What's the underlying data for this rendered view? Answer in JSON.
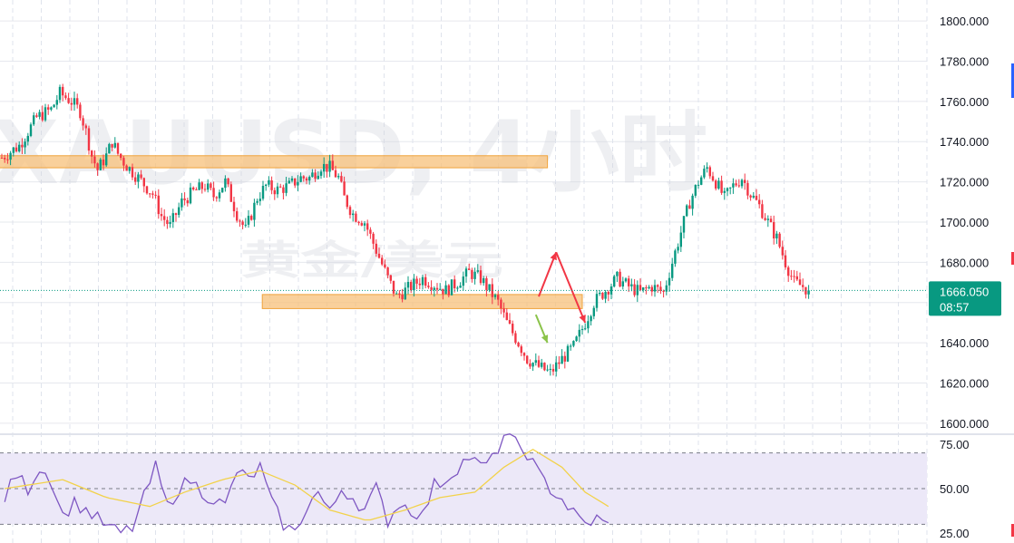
{
  "chart_data": [
    {
      "type": "candlestick",
      "watermark": {
        "symbol": "XAUUSD, 4小时",
        "subtitle": "黄金/美元"
      },
      "y_axis": {
        "ticks": [
          "1800.000",
          "1780.000",
          "1760.000",
          "1740.000",
          "1720.000",
          "1700.000",
          "1680.000",
          "1660.000",
          "1640.000",
          "1620.000",
          "1600.000"
        ],
        "range": [
          1595,
          1805
        ]
      },
      "last_price": {
        "value": "1666.050",
        "countdown": "08:57",
        "color": "#089981"
      },
      "colors": {
        "up": "#089981",
        "down": "#f23645",
        "zone": "#f7c07a"
      },
      "zones": [
        {
          "low": 1727,
          "high": 1733,
          "from": 0,
          "to": 188
        },
        {
          "low": 1657,
          "high": 1664,
          "from": 91,
          "to": 200
        }
      ],
      "arrows": [
        {
          "from": [
            185,
            1663
          ],
          "to": [
            191,
            1685
          ],
          "color": "#f23645"
        },
        {
          "from": [
            191,
            1685
          ],
          "to": [
            201,
            1650
          ],
          "color": "#f23645"
        },
        {
          "from": [
            184,
            1654
          ],
          "to": [
            188,
            1640
          ],
          "color": "#8bc34a"
        }
      ],
      "close_path": [
        [
          0,
          1732
        ],
        [
          6,
          1738
        ],
        [
          12,
          1752
        ],
        [
          17,
          1756
        ],
        [
          20,
          1764
        ],
        [
          24,
          1760
        ],
        [
          27,
          1755
        ],
        [
          29,
          1745
        ],
        [
          31,
          1733
        ],
        [
          33,
          1726
        ],
        [
          36,
          1733
        ],
        [
          38,
          1740
        ],
        [
          40,
          1734
        ],
        [
          43,
          1728
        ],
        [
          47,
          1722
        ],
        [
          52,
          1714
        ],
        [
          55,
          1703
        ],
        [
          58,
          1698
        ],
        [
          62,
          1710
        ],
        [
          66,
          1715
        ],
        [
          70,
          1718
        ],
        [
          73,
          1713
        ],
        [
          77,
          1720
        ],
        [
          81,
          1704
        ],
        [
          84,
          1696
        ],
        [
          88,
          1712
        ],
        [
          91,
          1718
        ],
        [
          95,
          1716
        ],
        [
          99,
          1718
        ],
        [
          103,
          1722
        ],
        [
          106,
          1722
        ],
        [
          110,
          1728
        ],
        [
          113,
          1727
        ],
        [
          116,
          1722
        ],
        [
          118,
          1712
        ],
        [
          121,
          1704
        ],
        [
          125,
          1700
        ],
        [
          129,
          1686
        ],
        [
          133,
          1672
        ],
        [
          136,
          1663
        ],
        [
          141,
          1668
        ],
        [
          145,
          1672
        ],
        [
          149,
          1669
        ],
        [
          153,
          1666
        ],
        [
          157,
          1670
        ],
        [
          161,
          1675
        ],
        [
          165,
          1672
        ],
        [
          168,
          1666
        ],
        [
          171,
          1660
        ],
        [
          174,
          1650
        ],
        [
          178,
          1640
        ],
        [
          181,
          1632
        ],
        [
          185,
          1628
        ],
        [
          189,
          1625
        ],
        [
          193,
          1632
        ],
        [
          197,
          1638
        ],
        [
          201,
          1650
        ],
        [
          204,
          1660
        ],
        [
          208,
          1666
        ],
        [
          212,
          1672
        ],
        [
          216,
          1668
        ],
        [
          220,
          1665
        ],
        [
          224,
          1668
        ],
        [
          228,
          1665
        ],
        [
          231,
          1680
        ],
        [
          234,
          1695
        ],
        [
          237,
          1710
        ],
        [
          240,
          1720
        ],
        [
          243,
          1727
        ],
        [
          246,
          1720
        ],
        [
          249,
          1712
        ],
        [
          252,
          1718
        ],
        [
          255,
          1722
        ],
        [
          258,
          1714
        ],
        [
          261,
          1708
        ],
        [
          264,
          1700
        ],
        [
          267,
          1692
        ],
        [
          270,
          1680
        ],
        [
          273,
          1670
        ],
        [
          276,
          1668
        ],
        [
          278,
          1666.05
        ]
      ],
      "rsi": {
        "levels": [
          "75.00",
          "50.00",
          "25.00"
        ],
        "range": [
          20,
          80
        ],
        "band": [
          30,
          70
        ],
        "color": "#7e57c2",
        "ma_color": "#f2d24a",
        "band_color": "#ece8f8",
        "values": [
          [
            0,
            45
          ],
          [
            4,
            58
          ],
          [
            8,
            50
          ],
          [
            12,
            62
          ],
          [
            16,
            55
          ],
          [
            20,
            35
          ],
          [
            24,
            42
          ],
          [
            28,
            38
          ],
          [
            32,
            33
          ],
          [
            36,
            28
          ],
          [
            40,
            25
          ],
          [
            44,
            28
          ],
          [
            48,
            45
          ],
          [
            52,
            62
          ],
          [
            56,
            40
          ],
          [
            60,
            50
          ],
          [
            64,
            55
          ],
          [
            68,
            48
          ],
          [
            72,
            44
          ],
          [
            76,
            40
          ],
          [
            80,
            60
          ],
          [
            84,
            55
          ],
          [
            88,
            62
          ],
          [
            92,
            42
          ],
          [
            96,
            30
          ],
          [
            100,
            25
          ],
          [
            104,
            40
          ],
          [
            108,
            48
          ],
          [
            112,
            36
          ],
          [
            116,
            50
          ],
          [
            120,
            45
          ],
          [
            124,
            38
          ],
          [
            128,
            50
          ],
          [
            132,
            32
          ],
          [
            136,
            42
          ],
          [
            140,
            38
          ],
          [
            144,
            35
          ],
          [
            148,
            52
          ],
          [
            152,
            55
          ],
          [
            156,
            62
          ],
          [
            160,
            68
          ],
          [
            164,
            62
          ],
          [
            168,
            66
          ],
          [
            172,
            80
          ],
          [
            176,
            75
          ],
          [
            180,
            70
          ],
          [
            184,
            58
          ],
          [
            188,
            50
          ],
          [
            192,
            44
          ],
          [
            196,
            36
          ],
          [
            200,
            30
          ],
          [
            204,
            33
          ],
          [
            208,
            29
          ]
        ],
        "ma": [
          [
            0,
            50
          ],
          [
            20,
            55
          ],
          [
            35,
            45
          ],
          [
            50,
            40
          ],
          [
            62,
            48
          ],
          [
            75,
            55
          ],
          [
            88,
            60
          ],
          [
            100,
            52
          ],
          [
            112,
            38
          ],
          [
            125,
            32
          ],
          [
            138,
            38
          ],
          [
            150,
            45
          ],
          [
            162,
            48
          ],
          [
            172,
            62
          ],
          [
            182,
            72
          ],
          [
            192,
            62
          ],
          [
            200,
            48
          ],
          [
            208,
            40
          ]
        ]
      }
    }
  ]
}
